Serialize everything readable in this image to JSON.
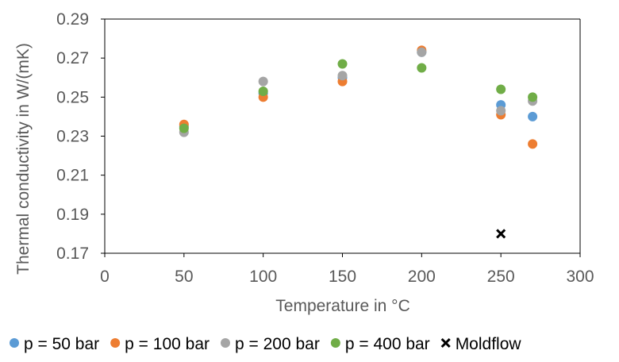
{
  "chart_data": {
    "type": "scatter",
    "title": "",
    "xlabel": "Temperature in °C",
    "ylabel": "Thermal conductivity in W/(mK)",
    "xlim": [
      0,
      300
    ],
    "ylim": [
      0.17,
      0.29
    ],
    "xticks": [
      0,
      50,
      100,
      150,
      200,
      250,
      300
    ],
    "xtick_labels": [
      "0",
      "50",
      "100",
      "150",
      "200",
      "250",
      "300"
    ],
    "yticks": [
      0.17,
      0.19,
      0.21,
      0.23,
      0.25,
      0.27,
      0.29
    ],
    "ytick_labels": [
      "0.17",
      "0.19",
      "0.21",
      "0.23",
      "0.25",
      "0.27",
      "0.29"
    ],
    "grid": false,
    "legend_position": "bottom",
    "series": [
      {
        "name": "p = 50 bar",
        "color": "#5b9bd5",
        "marker": "circle",
        "points": [
          {
            "x": 50,
            "y": 0.235
          },
          {
            "x": 100,
            "y": 0.252
          },
          {
            "x": 150,
            "y": 0.26
          },
          {
            "x": 200,
            "y": 0.273
          },
          {
            "x": 250,
            "y": 0.246
          },
          {
            "x": 270,
            "y": 0.24
          }
        ]
      },
      {
        "name": "p = 100 bar",
        "color": "#ed7d31",
        "marker": "circle",
        "points": [
          {
            "x": 50,
            "y": 0.236
          },
          {
            "x": 100,
            "y": 0.25
          },
          {
            "x": 150,
            "y": 0.258
          },
          {
            "x": 200,
            "y": 0.274
          },
          {
            "x": 250,
            "y": 0.241
          },
          {
            "x": 270,
            "y": 0.226
          }
        ]
      },
      {
        "name": "p = 200 bar",
        "color": "#a5a5a5",
        "marker": "circle",
        "points": [
          {
            "x": 50,
            "y": 0.232
          },
          {
            "x": 100,
            "y": 0.258
          },
          {
            "x": 150,
            "y": 0.261
          },
          {
            "x": 200,
            "y": 0.273
          },
          {
            "x": 250,
            "y": 0.243
          },
          {
            "x": 270,
            "y": 0.248
          }
        ]
      },
      {
        "name": "p = 400 bar",
        "color": "#70ad47",
        "marker": "circle",
        "points": [
          {
            "x": 50,
            "y": 0.234
          },
          {
            "x": 100,
            "y": 0.253
          },
          {
            "x": 150,
            "y": 0.267
          },
          {
            "x": 200,
            "y": 0.265
          },
          {
            "x": 250,
            "y": 0.254
          },
          {
            "x": 270,
            "y": 0.25
          }
        ]
      },
      {
        "name": "Moldflow",
        "color": "#000000",
        "marker": "x",
        "points": [
          {
            "x": 250,
            "y": 0.18
          }
        ]
      }
    ]
  }
}
